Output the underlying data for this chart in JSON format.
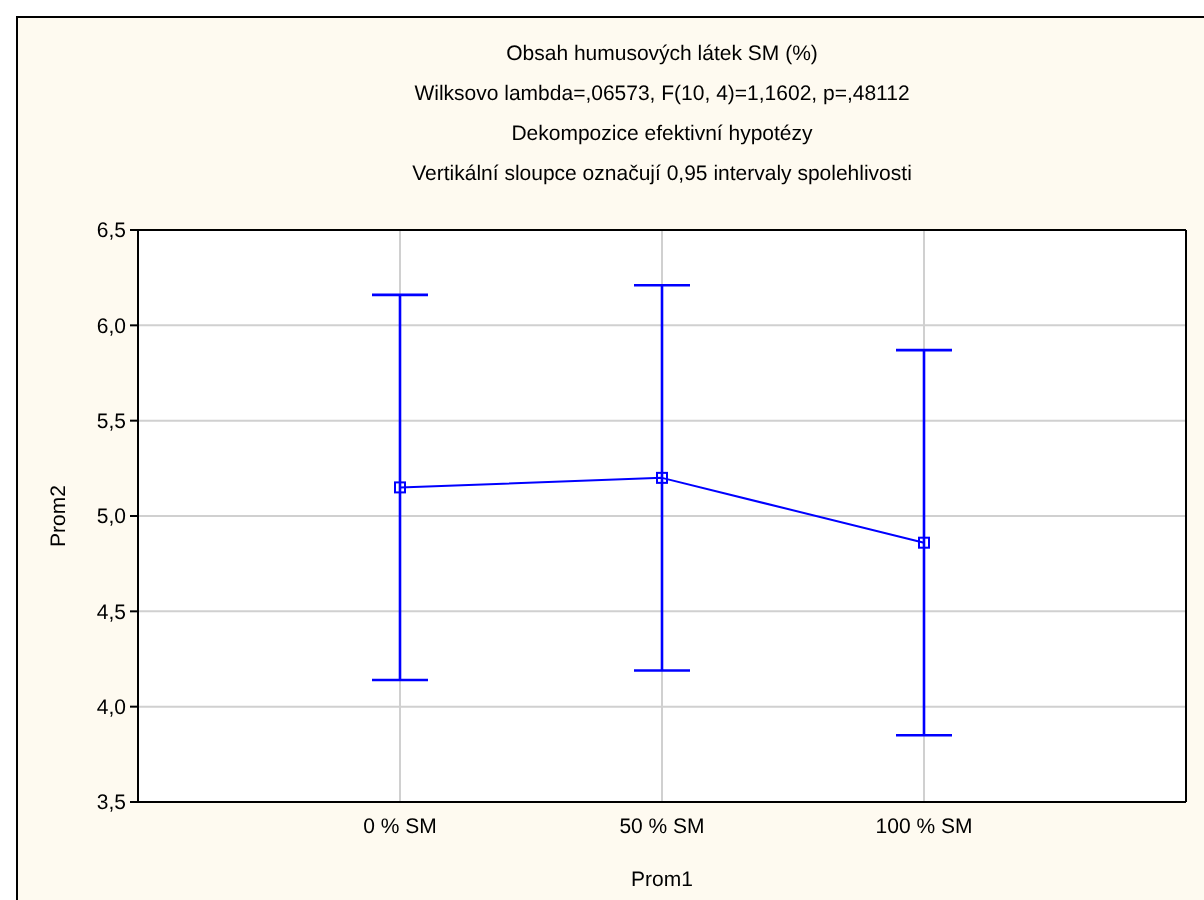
{
  "chart_data": {
    "type": "line",
    "title": "Obsah humusových látek SM (%)",
    "subtitle": "Wilksovo lambda=,06573, F(10, 4)=1,1602, p=,48112",
    "annotations": [
      "Dekompozice efektivní hypotézy",
      "Vertikální sloupce označují 0,95 intervaly spolehlivosti"
    ],
    "xlabel": "Prom1",
    "ylabel": "Prom2",
    "categories": [
      "0 % SM",
      "50 % SM",
      "100 % SM"
    ],
    "series": [
      {
        "color": "#0000ff",
        "values": [
          5.15,
          5.2,
          4.86
        ],
        "errors": [
          1.01,
          1.01,
          1.01
        ]
      }
    ],
    "ylim": [
      3.5,
      6.5
    ],
    "yticks": [
      {
        "value": 3.5,
        "label": "3,5"
      },
      {
        "value": 4,
        "label": "4,0"
      },
      {
        "value": 4.5,
        "label": "4,5"
      },
      {
        "value": 5,
        "label": "5,0"
      },
      {
        "value": 5.5,
        "label": "5,5"
      },
      {
        "value": 6,
        "label": "6,0"
      },
      {
        "value": 6.5,
        "label": "6,5"
      }
    ],
    "grid": true,
    "marker": "square",
    "line_style": "solid",
    "legend": false
  }
}
